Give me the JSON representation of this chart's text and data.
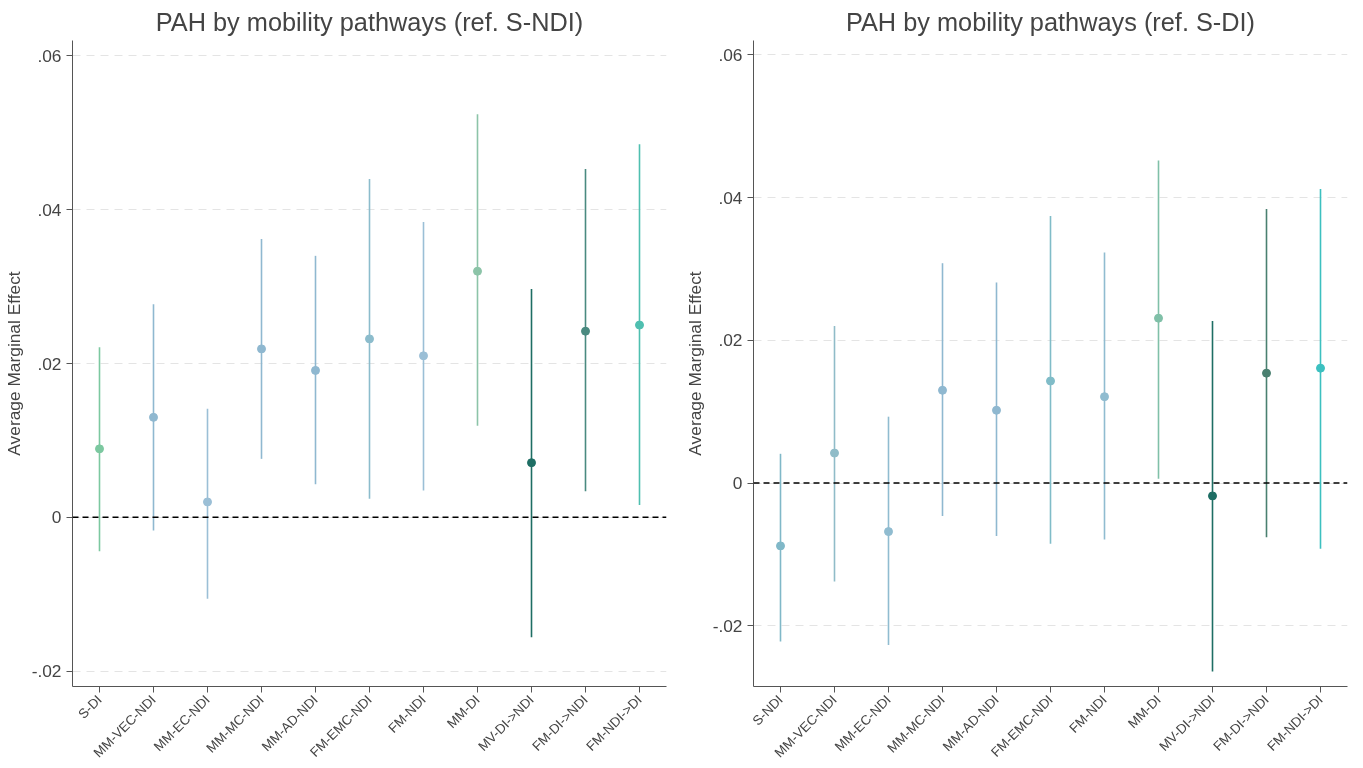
{
  "chart_data": [
    {
      "type": "scatter",
      "title": "PAH by mobility pathways (ref. S-NDI)",
      "ylabel": "Average Marginal Effect",
      "categories": [
        "S-DI",
        "MM-VEC-NDI",
        "MM-EC-NDI",
        "MM-MC-NDI",
        "MM-AD-NDI",
        "FM-EMC-NDI",
        "FM-NDI",
        "MM-DI",
        "MV-DI->NDI",
        "FM-DI->NDI",
        "FM-NDI->DI"
      ],
      "values": [
        0.0089,
        0.013,
        0.002,
        0.0219,
        0.0191,
        0.0232,
        0.021,
        0.032,
        0.0071,
        0.0242,
        0.025
      ],
      "errors": [
        [
          -0.0044,
          0.0221
        ],
        [
          -0.0017,
          0.0277
        ],
        [
          -0.0106,
          0.0141
        ],
        [
          0.0076,
          0.0362
        ],
        [
          0.0043,
          0.034
        ],
        [
          0.0024,
          0.044
        ],
        [
          0.0035,
          0.0384
        ],
        [
          0.0119,
          0.0524
        ],
        [
          -0.0156,
          0.0297
        ],
        [
          0.0034,
          0.0453
        ],
        [
          0.0016,
          0.0485
        ]
      ],
      "colors": [
        "#7cc8a0",
        "#8fb8d0",
        "#9bbfd6",
        "#8fb8d0",
        "#8fb8d0",
        "#8cbccc",
        "#9bbfd6",
        "#8cc4a8",
        "#1e6e64",
        "#4a8a80",
        "#4fbfb0"
      ],
      "ylim": [
        -0.022,
        0.062
      ],
      "yticks": [
        {
          "value": -0.02,
          "label": "-.02"
        },
        0,
        {
          "value": 0.02,
          "label": ".02"
        },
        {
          "value": 0.04,
          "label": ".04"
        },
        {
          "value": 0.06,
          "label": ".06"
        }
      ],
      "ref_lines": [
        {
          "axis": "y",
          "value": 0,
          "color": "#000000",
          "line_style": "dashed"
        }
      ],
      "grid": "y",
      "marker": "circle"
    },
    {
      "type": "scatter",
      "title": "PAH by mobility pathways (ref. S-DI)",
      "ylabel": "Average Marginal Effect",
      "categories": [
        "S-NDI",
        "MM-VEC-NDI",
        "MM-EC-NDI",
        "MM-MC-NDI",
        "MM-AD-NDI",
        "FM-EMC-NDI",
        "FM-NDI",
        "MM-DI",
        "MV-DI->NDI",
        "FM-DI->NDI",
        "FM-NDI->DI"
      ],
      "values": [
        -0.0088,
        0.0042,
        -0.0068,
        0.013,
        0.0102,
        0.0143,
        0.0121,
        0.0231,
        -0.0018,
        0.0154,
        0.0161
      ],
      "errors": [
        [
          -0.0222,
          0.0041
        ],
        [
          -0.0138,
          0.022
        ],
        [
          -0.0227,
          0.0093
        ],
        [
          -0.0046,
          0.0308
        ],
        [
          -0.0074,
          0.0281
        ],
        [
          -0.0085,
          0.0374
        ],
        [
          -0.0079,
          0.0323
        ],
        [
          0.0006,
          0.0452
        ],
        [
          -0.0264,
          0.0227
        ],
        [
          -0.0076,
          0.0384
        ],
        [
          -0.0092,
          0.0412
        ]
      ],
      "colors": [
        "#80b8c8",
        "#90bcc8",
        "#90bcd0",
        "#8fb8d0",
        "#8fb8d0",
        "#80bcc8",
        "#90bcd0",
        "#80c0a8",
        "#1e6e64",
        "#4a8070",
        "#3cc0c0"
      ],
      "ylim": [
        -0.0285,
        0.062
      ],
      "yticks": [
        {
          "value": -0.02,
          "label": "-.02"
        },
        0,
        {
          "value": 0.02,
          "label": ".02"
        },
        {
          "value": 0.04,
          "label": ".04"
        },
        {
          "value": 0.06,
          "label": ".06"
        }
      ],
      "ref_lines": [
        {
          "axis": "y",
          "value": 0,
          "color": "#000000",
          "line_style": "dashed"
        }
      ],
      "grid": "y",
      "marker": "circle"
    }
  ]
}
